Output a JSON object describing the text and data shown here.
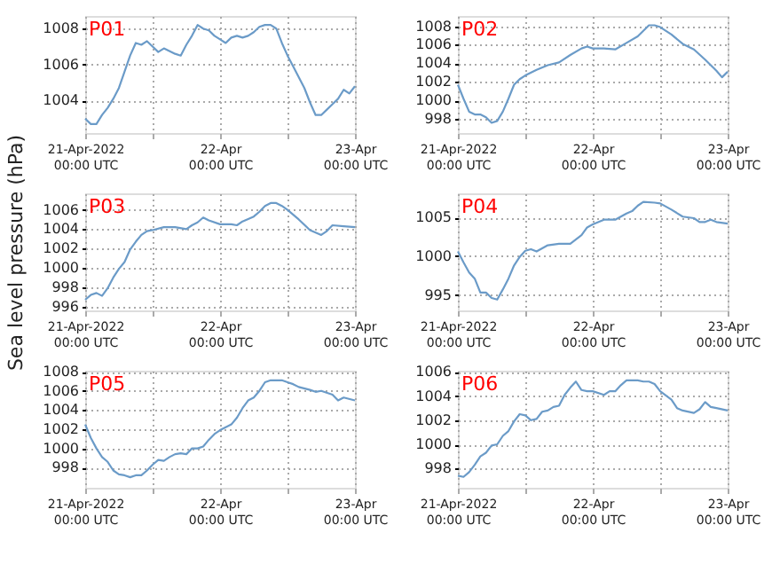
{
  "chart_data": [
    {
      "type": "line",
      "title": "P01",
      "xlim": [
        "2022-04-21T00:00",
        "2022-04-23T00:00"
      ],
      "ylim": [
        1002.2,
        1008.7
      ],
      "yticks": [
        1004,
        1006,
        1008
      ],
      "grid": true,
      "xticks": [
        {
          "value": "2022-04-21T00:00",
          "label": "21-Apr-2022\n00:00 UTC"
        },
        {
          "value": "2022-04-21T12:00",
          "label": null
        },
        {
          "value": "2022-04-22T00:00",
          "label": "22-Apr\n00:00 UTC"
        },
        {
          "value": "2022-04-22T12:00",
          "label": null
        },
        {
          "value": "2022-04-23T00:00",
          "label": "23-Apr\n00:00 UTC"
        }
      ],
      "series": [
        {
          "color": "#6b9bc8",
          "x": [
            "2022-04-21T00:00",
            "2022-04-21T01:00",
            "2022-04-21T02:00",
            "2022-04-21T03:00",
            "2022-04-21T04:00",
            "2022-04-21T05:00",
            "2022-04-21T06:00",
            "2022-04-21T07:00",
            "2022-04-21T08:00",
            "2022-04-21T09:00",
            "2022-04-21T10:00",
            "2022-04-21T11:00",
            "2022-04-21T12:00",
            "2022-04-21T13:00",
            "2022-04-21T14:00",
            "2022-04-21T16:00",
            "2022-04-21T17:00",
            "2022-04-21T18:00",
            "2022-04-21T19:00",
            "2022-04-21T20:00",
            "2022-04-21T21:00",
            "2022-04-21T22:00",
            "2022-04-21T23:00",
            "2022-04-22T00:00",
            "2022-04-22T01:00",
            "2022-04-22T02:00",
            "2022-04-22T03:00",
            "2022-04-22T04:00",
            "2022-04-22T05:00",
            "2022-04-22T06:00",
            "2022-04-22T07:00",
            "2022-04-22T08:00",
            "2022-04-22T09:00",
            "2022-04-22T10:00",
            "2022-04-22T11:00",
            "2022-04-22T12:00",
            "2022-04-22T13:00",
            "2022-04-22T14:00",
            "2022-04-22T15:00",
            "2022-04-22T16:00",
            "2022-04-22T17:00",
            "2022-04-22T18:00",
            "2022-04-22T19:00",
            "2022-04-22T20:00",
            "2022-04-22T21:00",
            "2022-04-22T22:00",
            "2022-04-22T23:00",
            "2022-04-23T00:00"
          ],
          "values": [
            1003.0,
            1002.7,
            1002.7,
            1003.2,
            1003.6,
            1004.1,
            1004.7,
            1005.6,
            1006.5,
            1007.2,
            1007.1,
            1007.3,
            1007.0,
            1006.7,
            1006.9,
            1006.6,
            1006.5,
            1007.1,
            1007.6,
            1008.2,
            1008.0,
            1007.9,
            1007.6,
            1007.4,
            1007.2,
            1007.5,
            1007.6,
            1007.5,
            1007.6,
            1007.8,
            1008.1,
            1008.2,
            1008.2,
            1008.0,
            1007.2,
            1006.5,
            1005.9,
            1005.3,
            1004.7,
            1003.9,
            1003.2,
            1003.2,
            1003.5,
            1003.8,
            1004.1,
            1004.6,
            1004.4,
            1004.8
          ]
        }
      ]
    },
    {
      "type": "line",
      "title": "P02",
      "xlim": [
        "2022-04-21T00:00",
        "2022-04-23T00:00"
      ],
      "ylim": [
        996.5,
        1009.1
      ],
      "yticks": [
        998,
        1000,
        1002,
        1004,
        1006,
        1008
      ],
      "grid": true,
      "xticks": [
        {
          "value": "2022-04-21T00:00",
          "label": "21-Apr-2022\n00:00 UTC"
        },
        {
          "value": "2022-04-21T12:00",
          "label": null
        },
        {
          "value": "2022-04-22T00:00",
          "label": "22-Apr\n00:00 UTC"
        },
        {
          "value": "2022-04-22T12:00",
          "label": null
        },
        {
          "value": "2022-04-23T00:00",
          "label": "23-Apr\n00:00 UTC"
        }
      ],
      "series": [
        {
          "color": "#6b9bc8",
          "x": [
            "2022-04-21T00:00",
            "2022-04-21T01:00",
            "2022-04-21T02:00",
            "2022-04-21T03:00",
            "2022-04-21T04:00",
            "2022-04-21T05:00",
            "2022-04-21T06:00",
            "2022-04-21T07:00",
            "2022-04-21T08:00",
            "2022-04-21T09:00",
            "2022-04-21T10:00",
            "2022-04-21T11:00",
            "2022-04-21T12:00",
            "2022-04-21T14:00",
            "2022-04-21T16:00",
            "2022-04-21T18:00",
            "2022-04-21T20:00",
            "2022-04-21T22:00",
            "2022-04-21T23:00",
            "2022-04-22T00:00",
            "2022-04-22T02:00",
            "2022-04-22T04:00",
            "2022-04-22T06:00",
            "2022-04-22T08:00",
            "2022-04-22T09:00",
            "2022-04-22T10:00",
            "2022-04-22T11:00",
            "2022-04-22T12:00",
            "2022-04-22T14:00",
            "2022-04-22T16:00",
            "2022-04-22T18:00",
            "2022-04-22T20:00",
            "2022-04-22T21:00",
            "2022-04-22T22:00",
            "2022-04-22T23:00",
            "2022-04-23T00:00"
          ],
          "values": [
            1001.7,
            1000.2,
            998.8,
            998.5,
            998.5,
            998.2,
            997.6,
            997.8,
            998.8,
            1000.2,
            1001.7,
            1002.3,
            1002.7,
            1003.3,
            1003.8,
            1004.1,
            1004.9,
            1005.6,
            1005.8,
            1005.6,
            1005.6,
            1005.5,
            1006.2,
            1006.9,
            1007.5,
            1008.1,
            1008.1,
            1007.9,
            1007.1,
            1006.1,
            1005.5,
            1004.4,
            1003.8,
            1003.2,
            1002.5,
            1003.1
          ]
        }
      ]
    },
    {
      "type": "line",
      "title": "P03",
      "ylabel": "Sea level pressure (hPa)",
      "xlim": [
        "2022-04-21T00:00",
        "2022-04-23T00:00"
      ],
      "ylim": [
        995.6,
        1007.7
      ],
      "yticks": [
        996,
        998,
        1000,
        1002,
        1004,
        1006
      ],
      "grid": true,
      "xticks": [
        {
          "value": "2022-04-21T00:00",
          "label": "21-Apr-2022\n00:00 UTC"
        },
        {
          "value": "2022-04-21T12:00",
          "label": null
        },
        {
          "value": "2022-04-22T00:00",
          "label": "22-Apr\n00:00 UTC"
        },
        {
          "value": "2022-04-22T12:00",
          "label": null
        },
        {
          "value": "2022-04-23T00:00",
          "label": "23-Apr\n00:00 UTC"
        }
      ],
      "series": [
        {
          "color": "#6b9bc8",
          "x": [
            "2022-04-21T00:00",
            "2022-04-21T01:00",
            "2022-04-21T02:00",
            "2022-04-21T03:00",
            "2022-04-21T04:00",
            "2022-04-21T05:00",
            "2022-04-21T06:00",
            "2022-04-21T07:00",
            "2022-04-21T08:00",
            "2022-04-21T09:00",
            "2022-04-21T10:00",
            "2022-04-21T11:00",
            "2022-04-21T12:00",
            "2022-04-21T14:00",
            "2022-04-21T16:00",
            "2022-04-21T18:00",
            "2022-04-21T19:00",
            "2022-04-21T20:00",
            "2022-04-21T21:00",
            "2022-04-21T22:00",
            "2022-04-22T00:00",
            "2022-04-22T02:00",
            "2022-04-22T03:00",
            "2022-04-22T04:00",
            "2022-04-22T06:00",
            "2022-04-22T07:00",
            "2022-04-22T08:00",
            "2022-04-22T09:00",
            "2022-04-22T10:00",
            "2022-04-22T11:00",
            "2022-04-22T12:00",
            "2022-04-22T14:00",
            "2022-04-22T16:00",
            "2022-04-22T18:00",
            "2022-04-22T19:00",
            "2022-04-22T20:00",
            "2022-04-22T22:00",
            "2022-04-23T00:00"
          ],
          "values": [
            996.7,
            997.2,
            997.4,
            997.1,
            997.9,
            999.0,
            999.9,
            1000.6,
            1001.9,
            1002.7,
            1003.4,
            1003.8,
            1003.9,
            1004.2,
            1004.2,
            1004.0,
            1004.4,
            1004.7,
            1005.2,
            1004.9,
            1004.5,
            1004.5,
            1004.4,
            1004.8,
            1005.3,
            1005.8,
            1006.4,
            1006.7,
            1006.7,
            1006.4,
            1006.0,
            1005.0,
            1003.9,
            1003.4,
            1003.8,
            1004.4,
            1004.3,
            1004.2
          ]
        }
      ]
    },
    {
      "type": "line",
      "title": "P04",
      "xlim": [
        "2022-04-21T00:00",
        "2022-04-23T00:00"
      ],
      "ylim": [
        993.0,
        1008.1
      ],
      "yticks": [
        995,
        1000,
        1005
      ],
      "grid": true,
      "xticks": [
        {
          "value": "2022-04-21T00:00",
          "label": "21-Apr-2022\n00:00 UTC"
        },
        {
          "value": "2022-04-21T12:00",
          "label": null
        },
        {
          "value": "2022-04-22T00:00",
          "label": "22-Apr\n00:00 UTC"
        },
        {
          "value": "2022-04-22T12:00",
          "label": null
        },
        {
          "value": "2022-04-23T00:00",
          "label": "23-Apr\n00:00 UTC"
        }
      ],
      "series": [
        {
          "color": "#6b9bc8",
          "x": [
            "2022-04-21T00:00",
            "2022-04-21T01:00",
            "2022-04-21T02:00",
            "2022-04-21T03:00",
            "2022-04-21T04:00",
            "2022-04-21T05:00",
            "2022-04-21T06:00",
            "2022-04-21T07:00",
            "2022-04-21T08:00",
            "2022-04-21T09:00",
            "2022-04-21T10:00",
            "2022-04-21T11:00",
            "2022-04-21T12:00",
            "2022-04-21T13:00",
            "2022-04-21T14:00",
            "2022-04-21T16:00",
            "2022-04-21T18:00",
            "2022-04-21T20:00",
            "2022-04-21T22:00",
            "2022-04-21T23:00",
            "2022-04-22T00:00",
            "2022-04-22T02:00",
            "2022-04-22T04:00",
            "2022-04-22T06:00",
            "2022-04-22T07:00",
            "2022-04-22T08:00",
            "2022-04-22T09:00",
            "2022-04-22T11:00",
            "2022-04-22T12:00",
            "2022-04-22T14:00",
            "2022-04-22T16:00",
            "2022-04-22T18:00",
            "2022-04-22T19:00",
            "2022-04-22T20:00",
            "2022-04-22T21:00",
            "2022-04-22T22:00",
            "2022-04-23T00:00"
          ],
          "values": [
            1000.6,
            999.2,
            997.9,
            997.1,
            995.3,
            995.3,
            994.6,
            994.4,
            995.7,
            997.1,
            998.8,
            999.9,
            1000.7,
            1000.9,
            1000.6,
            1001.4,
            1001.6,
            1001.6,
            1002.7,
            1003.7,
            1004.1,
            1004.7,
            1004.7,
            1005.5,
            1005.8,
            1006.5,
            1007.0,
            1006.9,
            1006.8,
            1006.0,
            1005.1,
            1004.9,
            1004.4,
            1004.4,
            1004.7,
            1004.4,
            1004.2
          ]
        }
      ]
    },
    {
      "type": "line",
      "title": "P05",
      "xlim": [
        "2022-04-21T00:00",
        "2022-04-23T00:00"
      ],
      "ylim": [
        995.9,
        1008.1
      ],
      "yticks": [
        998,
        1000,
        1002,
        1004,
        1006,
        1008
      ],
      "grid": true,
      "xticks": [
        {
          "value": "2022-04-21T00:00",
          "label": "21-Apr-2022\n00:00 UTC"
        },
        {
          "value": "2022-04-21T12:00",
          "label": null
        },
        {
          "value": "2022-04-22T00:00",
          "label": "22-Apr\n00:00 UTC"
        },
        {
          "value": "2022-04-22T12:00",
          "label": null
        },
        {
          "value": "2022-04-23T00:00",
          "label": "23-Apr\n00:00 UTC"
        }
      ],
      "series": [
        {
          "color": "#6b9bc8",
          "x": [
            "2022-04-21T00:00",
            "2022-04-21T01:00",
            "2022-04-21T02:00",
            "2022-04-21T03:00",
            "2022-04-21T04:00",
            "2022-04-21T05:00",
            "2022-04-21T06:00",
            "2022-04-21T07:00",
            "2022-04-21T08:00",
            "2022-04-21T09:00",
            "2022-04-21T10:00",
            "2022-04-21T11:00",
            "2022-04-21T12:00",
            "2022-04-21T13:00",
            "2022-04-21T14:00",
            "2022-04-21T15:00",
            "2022-04-21T16:00",
            "2022-04-21T17:00",
            "2022-04-21T18:00",
            "2022-04-21T19:00",
            "2022-04-21T20:00",
            "2022-04-21T21:00",
            "2022-04-21T22:00",
            "2022-04-21T23:00",
            "2022-04-22T00:00",
            "2022-04-22T01:00",
            "2022-04-22T02:00",
            "2022-04-22T03:00",
            "2022-04-22T04:00",
            "2022-04-22T05:00",
            "2022-04-22T06:00",
            "2022-04-22T07:00",
            "2022-04-22T08:00",
            "2022-04-22T09:00",
            "2022-04-22T10:00",
            "2022-04-22T11:00",
            "2022-04-22T12:00",
            "2022-04-22T13:00",
            "2022-04-22T14:00",
            "2022-04-22T16:00",
            "2022-04-22T17:00",
            "2022-04-22T18:00",
            "2022-04-22T20:00",
            "2022-04-22T21:00",
            "2022-04-22T22:00",
            "2022-04-23T00:00"
          ],
          "values": [
            1002.5,
            1001.1,
            1000.0,
            999.1,
            998.6,
            997.7,
            997.3,
            997.2,
            997.0,
            997.2,
            997.2,
            997.7,
            998.3,
            998.8,
            998.7,
            999.1,
            999.4,
            999.5,
            999.4,
            1000.0,
            1000.0,
            1000.2,
            1000.9,
            1001.5,
            1001.9,
            1002.2,
            1002.5,
            1003.2,
            1004.2,
            1005.0,
            1005.3,
            1006.0,
            1006.9,
            1007.1,
            1007.1,
            1007.1,
            1006.9,
            1006.7,
            1006.4,
            1006.1,
            1005.9,
            1006.0,
            1005.6,
            1005.0,
            1005.3,
            1005.0
          ]
        }
      ]
    },
    {
      "type": "line",
      "title": "P06",
      "xlim": [
        "2022-04-21T00:00",
        "2022-04-23T00:00"
      ],
      "ylim": [
        996.4,
        1006.1
      ],
      "yticks": [
        998,
        1000,
        1002,
        1004,
        1006
      ],
      "grid": true,
      "xticks": [
        {
          "value": "2022-04-21T00:00",
          "label": "21-Apr-2022\n00:00 UTC"
        },
        {
          "value": "2022-04-21T12:00",
          "label": null
        },
        {
          "value": "2022-04-22T00:00",
          "label": "22-Apr\n00:00 UTC"
        },
        {
          "value": "2022-04-22T12:00",
          "label": null
        },
        {
          "value": "2022-04-23T00:00",
          "label": "23-Apr\n00:00 UTC"
        }
      ],
      "series": [
        {
          "color": "#6b9bc8",
          "x": [
            "2022-04-21T00:00",
            "2022-04-21T01:00",
            "2022-04-21T02:00",
            "2022-04-21T03:00",
            "2022-04-21T04:00",
            "2022-04-21T05:00",
            "2022-04-21T06:00",
            "2022-04-21T07:00",
            "2022-04-21T08:00",
            "2022-04-21T09:00",
            "2022-04-21T10:00",
            "2022-04-21T11:00",
            "2022-04-21T12:00",
            "2022-04-21T13:00",
            "2022-04-21T14:00",
            "2022-04-21T15:00",
            "2022-04-21T16:00",
            "2022-04-21T17:00",
            "2022-04-21T18:00",
            "2022-04-21T19:00",
            "2022-04-21T20:00",
            "2022-04-21T21:00",
            "2022-04-21T22:00",
            "2022-04-21T23:00",
            "2022-04-22T00:00",
            "2022-04-22T02:00",
            "2022-04-22T03:00",
            "2022-04-22T04:00",
            "2022-04-22T05:00",
            "2022-04-22T06:00",
            "2022-04-22T08:00",
            "2022-04-22T09:00",
            "2022-04-22T10:00",
            "2022-04-22T11:00",
            "2022-04-22T12:00",
            "2022-04-22T14:00",
            "2022-04-22T15:00",
            "2022-04-22T16:00",
            "2022-04-22T18:00",
            "2022-04-22T19:00",
            "2022-04-22T20:00",
            "2022-04-22T21:00",
            "2022-04-22T22:00",
            "2022-04-23T00:00"
          ],
          "values": [
            997.4,
            997.3,
            997.7,
            998.3,
            999.0,
            999.3,
            999.9,
            1000.0,
            1000.7,
            1001.1,
            1001.9,
            1002.5,
            1002.4,
            1002.0,
            1002.1,
            1002.7,
            1002.8,
            1003.1,
            1003.2,
            1004.1,
            1004.7,
            1005.2,
            1004.5,
            1004.4,
            1004.4,
            1004.1,
            1004.4,
            1004.4,
            1004.9,
            1005.3,
            1005.3,
            1005.2,
            1005.2,
            1005.0,
            1004.4,
            1003.7,
            1003.0,
            1002.8,
            1002.6,
            1002.9,
            1003.5,
            1003.1,
            1003.0,
            1002.8
          ]
        }
      ]
    }
  ]
}
